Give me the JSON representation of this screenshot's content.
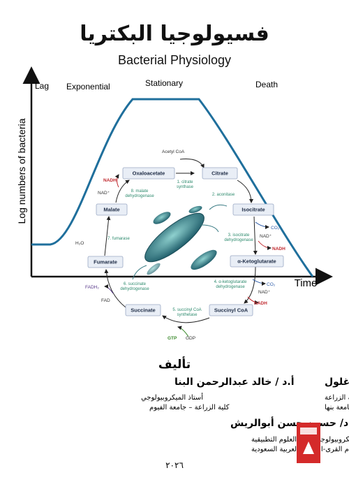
{
  "cover": {
    "title_ar": "فسيولوجيا البكتريا",
    "title_en": "Bacterial Physiology",
    "growth_curve": {
      "y_label": "Log numbers of bacteria",
      "x_label": "Time",
      "phases": [
        "Lag",
        "Exponential",
        "Stationary",
        "Death"
      ]
    },
    "krebs_cycle": {
      "nodes": [
        "Oxaloacetate",
        "Citrate",
        "Isocitrate",
        "α-Ketoglutarate",
        "Succinyl CoA",
        "Succinate",
        "Fumarate",
        "Malate"
      ],
      "enzymes": [
        "1. citrate",
        "synthase",
        "2. aconitase",
        "3. isocitrate",
        "dehydrogenase",
        "4. α-ketoglutarate",
        "dehydrogenase",
        "5. succinyl CoA",
        "synthetase",
        "6. succinate",
        "dehydrogenase",
        "7. fumarase",
        "8. malate",
        "dehydrogenase"
      ],
      "cofactors": [
        "Acetyl CoA",
        "NADH",
        "NAD⁺",
        "H₂O",
        "CO₂",
        "NAD⁺",
        "NADH",
        "CO₂",
        "NAD⁺",
        "NADH",
        "GTP",
        "GDP",
        "FADH₂",
        "FAD"
      ]
    },
    "authors_heading": "تأليف",
    "authors": [
      {
        "name": "أ. د/ راشد عبدالفتاح زغلول",
        "lines": [
          "أستاذ الميكروبيولوجي ووكيل كلية الزراعة",
          "لشئون التعليم والطلاب السابق- جامعة بنها"
        ]
      },
      {
        "name": "أ.د / خالد عبدالرحمن البنا",
        "lines": [
          "أستاذ الميكروبيولوجي",
          "كلية الزراعة – جامعة الفيوم"
        ]
      },
      {
        "name": "أ.د/ حسين حسن أبوالريش",
        "lines": [
          "أستاذ الميكروبيولوجي -كلية العلوم التطبيقية",
          "جامعة أم القرى-المملكة العربية السعودية"
        ]
      }
    ],
    "year": "٢٠٢٦"
  }
}
